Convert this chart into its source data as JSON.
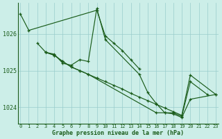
{
  "x": [
    0,
    1,
    2,
    3,
    4,
    5,
    6,
    7,
    8,
    9,
    10,
    11,
    12,
    13,
    14,
    15,
    16,
    17,
    18,
    19,
    20,
    21,
    22,
    23
  ],
  "line1_x": [
    0,
    1,
    9,
    10,
    11,
    12,
    13,
    14
  ],
  "line1_y": [
    1026.55,
    1026.1,
    1026.65,
    1025.95,
    1025.75,
    1025.55,
    1025.3,
    1025.05
  ],
  "line2_x": [
    2,
    3,
    4,
    5,
    6,
    7,
    8,
    9,
    10,
    14,
    15,
    16,
    17,
    18,
    19,
    20,
    22
  ],
  "line2_y": [
    1025.75,
    1025.5,
    1025.45,
    1025.2,
    1025.15,
    1025.3,
    1025.25,
    1026.7,
    1025.85,
    1024.9,
    1024.4,
    1024.1,
    1023.85,
    1023.85,
    1023.75,
    1024.7,
    1024.35
  ],
  "line3_x": [
    3,
    4,
    5,
    6,
    7,
    8,
    16,
    17,
    18,
    19,
    20,
    23
  ],
  "line3_y": [
    1025.5,
    1025.42,
    1025.25,
    1025.1,
    1025.0,
    1024.9,
    1023.85,
    1023.85,
    1023.82,
    1023.72,
    1024.22,
    1024.35
  ],
  "line4_x": [
    3,
    4,
    5,
    6,
    7,
    8,
    9,
    10,
    11,
    12,
    13,
    14,
    15,
    16,
    17,
    18,
    19,
    20,
    23
  ],
  "line4_y": [
    1025.5,
    1025.42,
    1025.25,
    1025.1,
    1025.0,
    1024.9,
    1024.8,
    1024.7,
    1024.6,
    1024.5,
    1024.38,
    1024.28,
    1024.18,
    1024.08,
    1023.98,
    1023.88,
    1023.78,
    1024.88,
    1024.35
  ],
  "bg_color": "#cceee8",
  "grid_color": "#99cccc",
  "line_color": "#1a5c1a",
  "xlabel": "Graphe pression niveau de la mer (hPa)",
  "yticks": [
    1024,
    1025,
    1026
  ],
  "xtick_labels": [
    "0",
    "1",
    "2",
    "3",
    "4",
    "5",
    "6",
    "7",
    "8",
    "9",
    "10",
    "11",
    "12",
    "13",
    "14",
    "15",
    "16",
    "17",
    "18",
    "19",
    "20",
    "21",
    "22",
    "23"
  ],
  "xtick_pos": [
    0,
    1,
    2,
    3,
    4,
    5,
    6,
    7,
    8,
    9,
    10,
    11,
    12,
    13,
    14,
    15,
    16,
    17,
    18,
    19,
    20,
    21,
    22,
    23
  ],
  "ylim": [
    1023.55,
    1026.85
  ],
  "xlim": [
    -0.3,
    23.3
  ]
}
